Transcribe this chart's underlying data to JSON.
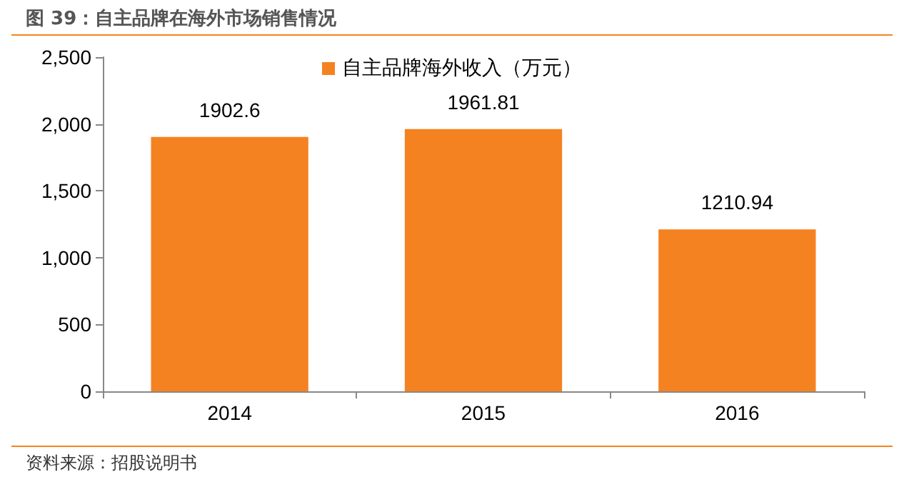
{
  "chart_data": {
    "type": "bar",
    "title": "图 39：自主品牌在海外市场销售情况",
    "categories": [
      "2014",
      "2015",
      "2016"
    ],
    "series": [
      {
        "name": "自主品牌海外收入（万元）",
        "color": "#f58220",
        "values": [
          1902.6,
          1961.81,
          1210.94
        ]
      }
    ],
    "ylim": [
      0,
      2500
    ],
    "yticks": [
      {
        "value": 0,
        "label": "0"
      },
      {
        "value": 500,
        "label": "500"
      },
      {
        "value": 1000,
        "label": "1,000"
      },
      {
        "value": 1500,
        "label": "1,500"
      },
      {
        "value": 2000,
        "label": "2,000"
      },
      {
        "value": 2500,
        "label": "2,500"
      }
    ],
    "data_labels": true,
    "grid": false,
    "legend": "top",
    "annotations": [
      "资料来源：招股说明书"
    ]
  }
}
